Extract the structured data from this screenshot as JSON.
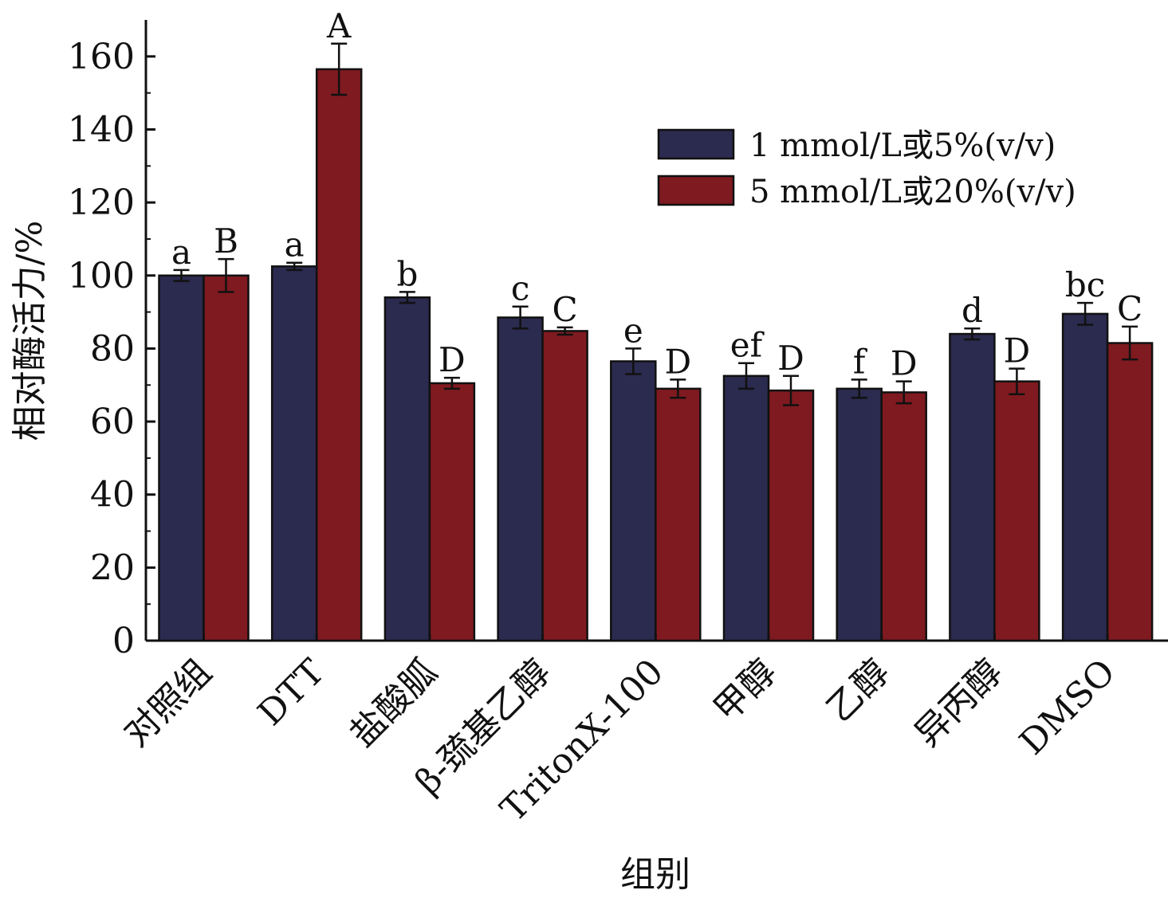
{
  "chart_data": {
    "type": "bar",
    "categories": [
      "对照组",
      "DTT",
      "盐酸胍",
      "β-巯基乙醇",
      "TritonX-100",
      "甲醇",
      "乙醇",
      "异丙醇",
      "DMSO"
    ],
    "series": [
      {
        "name": "1 mmol/L或5%(v/v)",
        "color": "#2b2a4f",
        "values": [
          100,
          102.5,
          94,
          88.5,
          76.5,
          72.5,
          69,
          84,
          89.5
        ],
        "errors": [
          1.5,
          1.0,
          1.5,
          3.0,
          3.5,
          3.5,
          2.5,
          1.5,
          3.0
        ],
        "labels": [
          "a",
          "a",
          "b",
          "c",
          "e",
          "ef",
          "f",
          "d",
          "bc"
        ]
      },
      {
        "name": "5 mmol/L或20%(v/v)",
        "color": "#7f1a20",
        "values": [
          100,
          156.5,
          70.5,
          84.8,
          69,
          68.5,
          68,
          71,
          81.5
        ],
        "errors": [
          4.5,
          7.0,
          1.5,
          1.0,
          2.5,
          4.0,
          3.0,
          3.5,
          4.5
        ],
        "labels": [
          "B",
          "A",
          "D",
          "C",
          "D",
          "D",
          "D",
          "D",
          "C"
        ]
      }
    ],
    "xlabel": "组别",
    "ylabel": "相对酶活力/%",
    "ylim": [
      0,
      170
    ],
    "yticks": [
      0,
      20,
      40,
      60,
      80,
      100,
      120,
      140,
      160
    ],
    "legend_position": "top-right",
    "grid": false
  }
}
